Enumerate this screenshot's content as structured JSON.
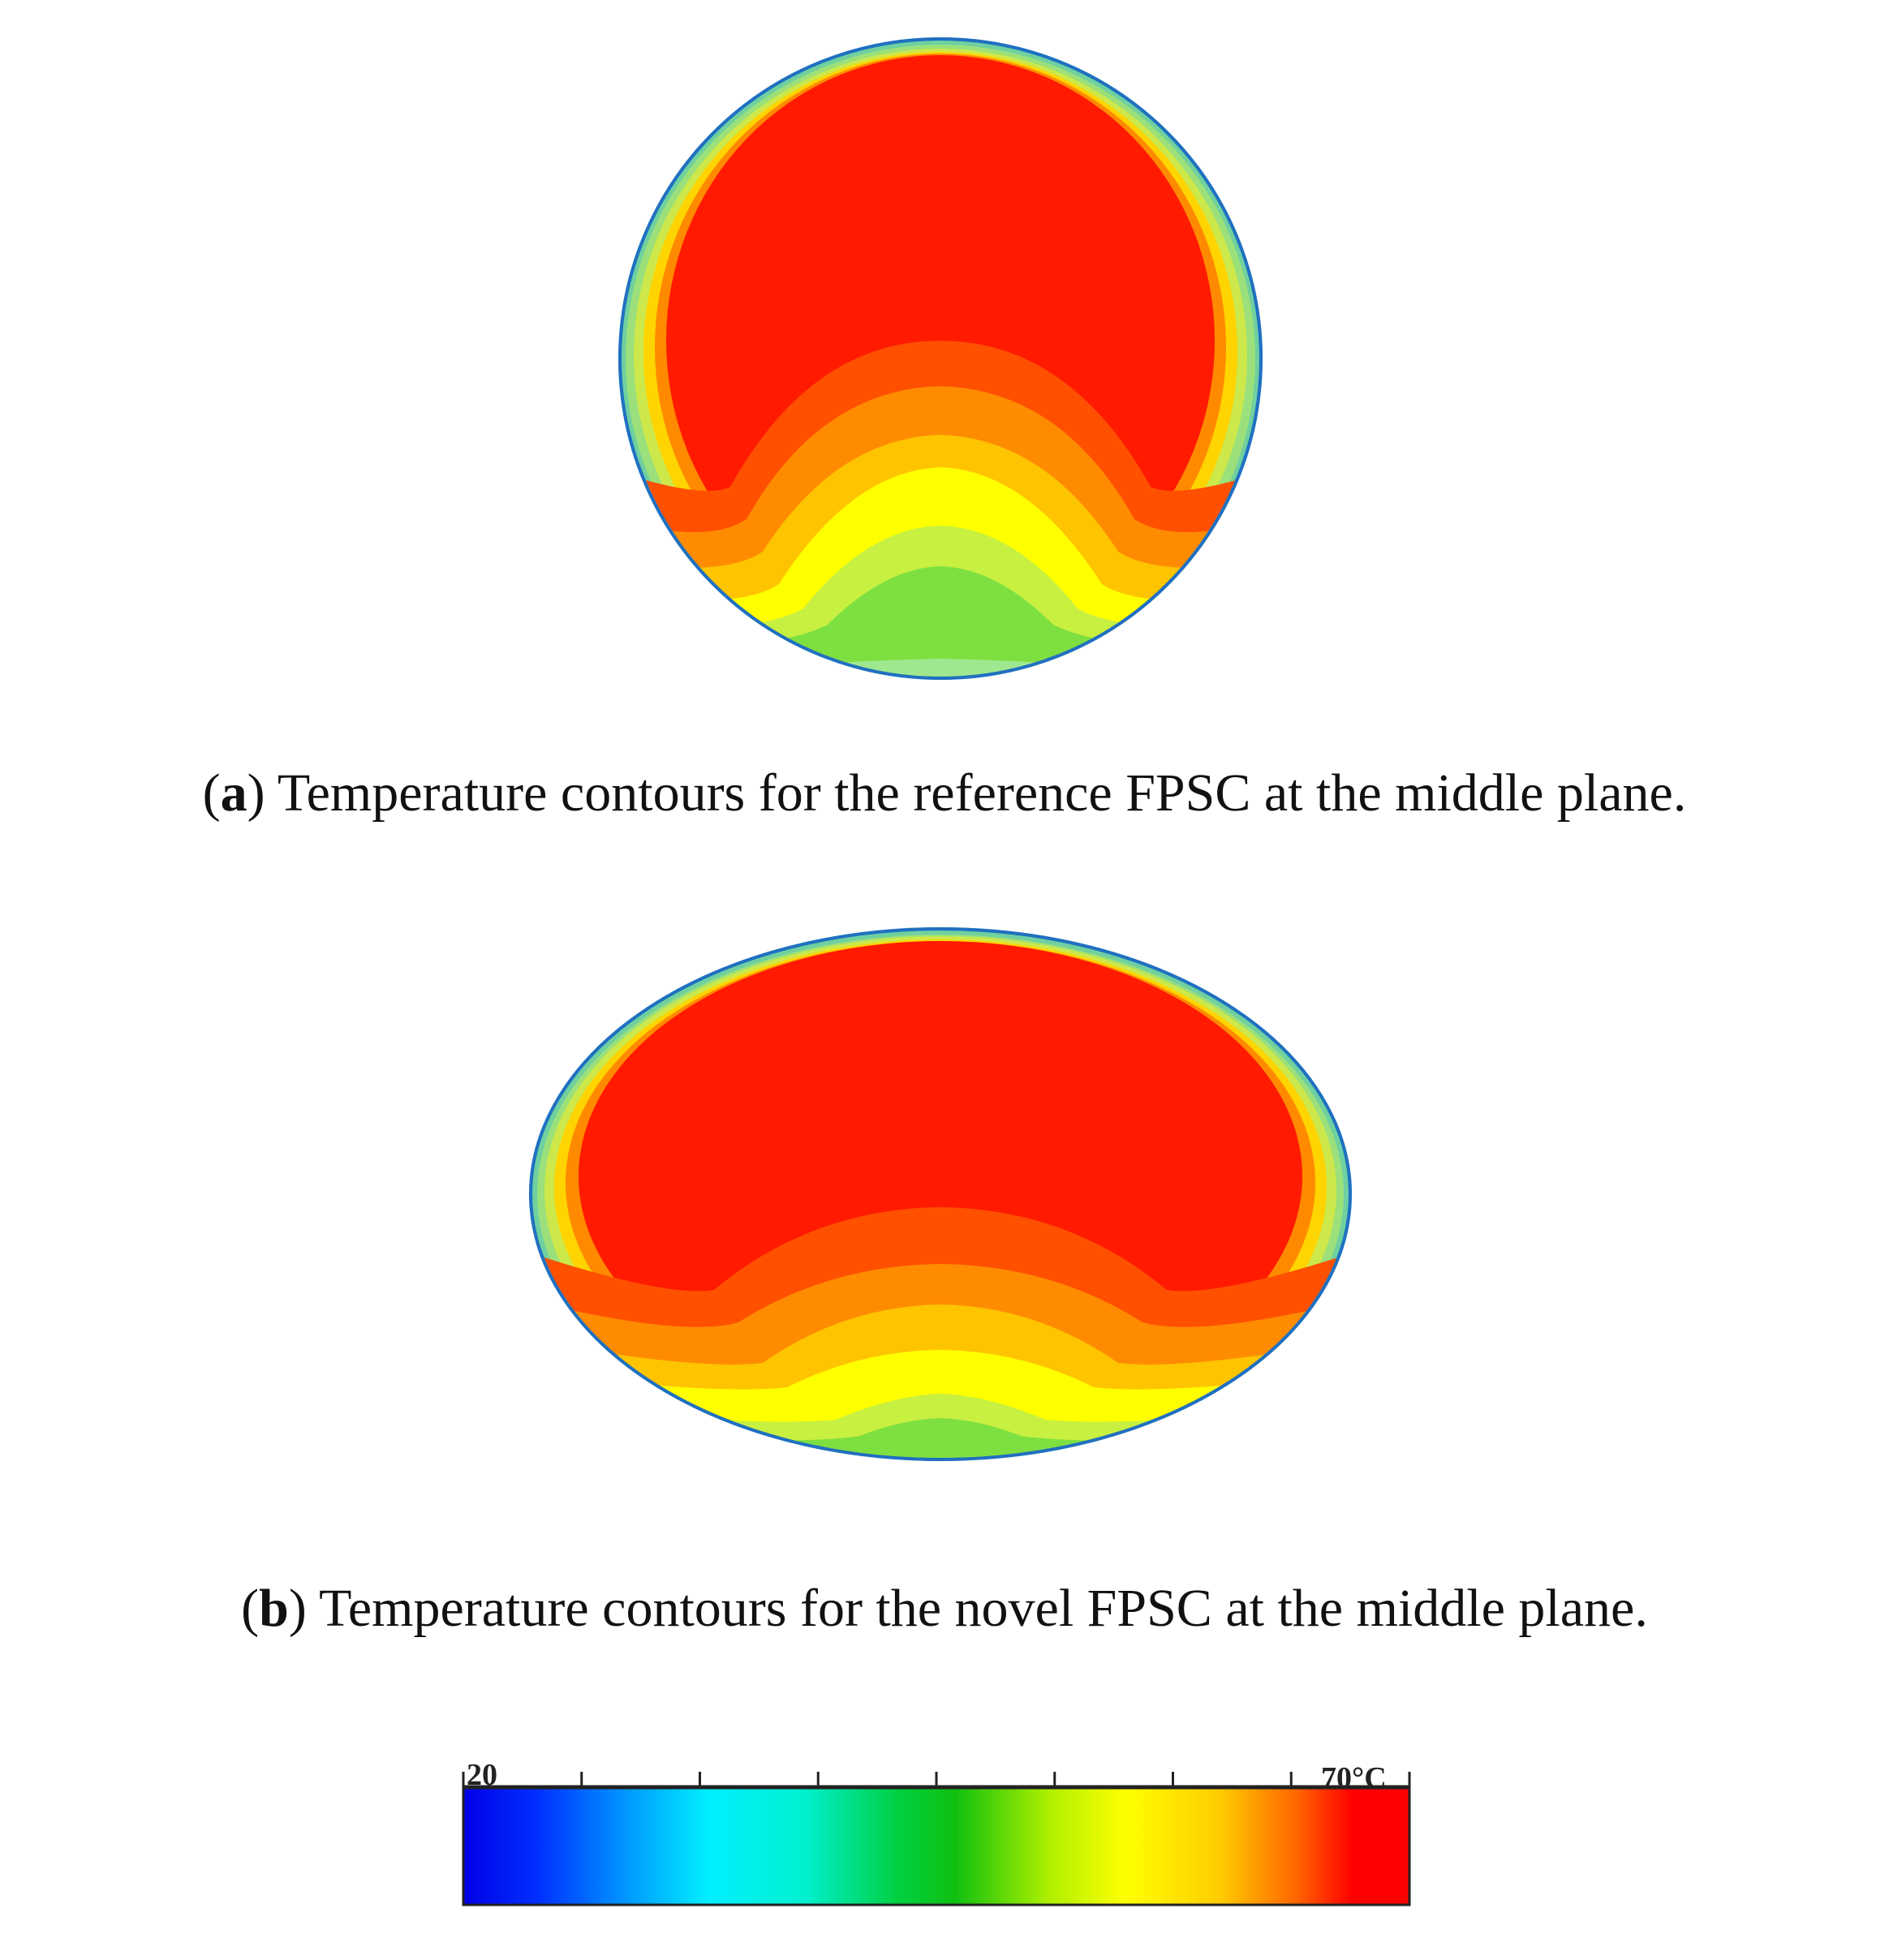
{
  "panels": [
    {
      "id": "a",
      "letter": "a",
      "caption": "Temperature contours for the reference FPSC at the middle plane."
    },
    {
      "id": "b",
      "letter": "b",
      "caption": "Temperature contours for the novel FPSC at the middle plane."
    }
  ],
  "colorbar": {
    "min_label": "20",
    "max_label": "70",
    "unit": "°C",
    "colors": [
      "#0000ff",
      "#00a0ff",
      "#00ffff",
      "#00d050",
      "#00c000",
      "#a0e000",
      "#ffff00",
      "#ff9900",
      "#ff0000"
    ]
  }
}
